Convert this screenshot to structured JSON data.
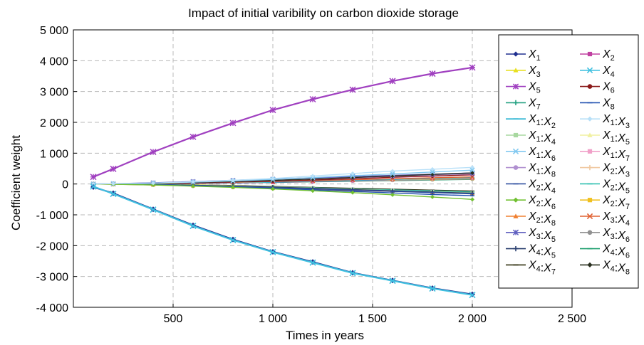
{
  "chart_data": {
    "type": "line",
    "title": "Impact of initial varibility on carbon dioxide storage",
    "xlabel": "Times in years",
    "ylabel": "Coefficient weight",
    "xlim": [
      0,
      2500
    ],
    "ylim": [
      -4000,
      5000
    ],
    "xticks": [
      500,
      1000,
      1500,
      2000,
      2500
    ],
    "xtick_labels": [
      "500",
      "1 000",
      "1 500",
      "2 000",
      "2 500"
    ],
    "yticks": [
      -4000,
      -3000,
      -2000,
      -1000,
      0,
      1000,
      2000,
      3000,
      4000,
      5000
    ],
    "ytick_labels": [
      "-4 000",
      "-3 000",
      "-2 000",
      "-1 000",
      "0",
      "1 000",
      "2 000",
      "3 000",
      "4 000",
      "5 000"
    ],
    "grid": true,
    "legend_position": "right",
    "x": [
      100,
      200,
      400,
      600,
      800,
      1000,
      1200,
      1400,
      1600,
      1800,
      2000
    ],
    "series": [
      {
        "name": "X1",
        "sub": [
          "1"
        ],
        "color": "#1f2f8f",
        "marker": "diamond",
        "values": [
          -100,
          -300,
          -820,
          -1340,
          -1800,
          -2200,
          -2530,
          -2880,
          -3130,
          -3380,
          -3580
        ]
      },
      {
        "name": "X2",
        "sub": [
          "2"
        ],
        "color": "#c040a0",
        "marker": "square",
        "values": [
          0,
          0,
          5,
          15,
          30,
          55,
          80,
          110,
          150,
          180,
          200
        ]
      },
      {
        "name": "X3",
        "sub": [
          "3"
        ],
        "color": "#e8e020",
        "marker": "triangle",
        "values": [
          0,
          0,
          -10,
          -30,
          -60,
          -100,
          -140,
          -180,
          -220,
          -260,
          -300
        ]
      },
      {
        "name": "X4",
        "sub": [
          "4"
        ],
        "color": "#40c0e0",
        "marker": "x",
        "values": [
          -80,
          -320,
          -830,
          -1360,
          -1820,
          -2210,
          -2550,
          -2890,
          -3140,
          -3390,
          -3600
        ]
      },
      {
        "name": "X5",
        "sub": [
          "5"
        ],
        "color": "#a040c0",
        "marker": "star",
        "values": [
          230,
          490,
          1040,
          1530,
          1980,
          2400,
          2750,
          3060,
          3340,
          3580,
          3780
        ]
      },
      {
        "name": "X6",
        "sub": [
          "6"
        ],
        "color": "#8b1a1a",
        "marker": "circle",
        "values": [
          0,
          0,
          10,
          30,
          60,
          90,
          130,
          170,
          220,
          260,
          300
        ]
      },
      {
        "name": "X7",
        "sub": [
          "7"
        ],
        "color": "#20a080",
        "marker": "plus",
        "values": [
          0,
          0,
          -10,
          -40,
          -80,
          -120,
          -160,
          -200,
          -230,
          -270,
          -300
        ]
      },
      {
        "name": "X8",
        "sub": [
          "8"
        ],
        "color": "#2050b0",
        "marker": "dash",
        "values": [
          0,
          0,
          -20,
          -50,
          -90,
          -140,
          -190,
          -240,
          -290,
          -340,
          -380
        ]
      },
      {
        "name": "X1:X2",
        "sub": [
          "1",
          "2"
        ],
        "color": "#20b0d0",
        "marker": "dash",
        "values": [
          0,
          0,
          10,
          20,
          40,
          60,
          90,
          120,
          150,
          180,
          210
        ]
      },
      {
        "name": "X1:X3",
        "sub": [
          "1",
          "3"
        ],
        "color": "#b8e0f8",
        "marker": "diamond",
        "values": [
          0,
          10,
          30,
          70,
          120,
          180,
          260,
          340,
          420,
          480,
          540
        ]
      },
      {
        "name": "X1:X4",
        "sub": [
          "1",
          "4"
        ],
        "color": "#a8d8a0",
        "marker": "square",
        "values": [
          0,
          0,
          -10,
          -30,
          -60,
          -90,
          -130,
          -170,
          -210,
          -250,
          -290
        ]
      },
      {
        "name": "X1:X5",
        "sub": [
          "1",
          "5"
        ],
        "color": "#f0f0a0",
        "marker": "triangle",
        "values": [
          0,
          0,
          10,
          30,
          50,
          80,
          110,
          140,
          170,
          200,
          230
        ]
      },
      {
        "name": "X1:X6",
        "sub": [
          "1",
          "6"
        ],
        "color": "#80c8f0",
        "marker": "x",
        "values": [
          0,
          10,
          30,
          60,
          100,
          150,
          210,
          270,
          330,
          390,
          450
        ]
      },
      {
        "name": "X1:X7",
        "sub": [
          "1",
          "7"
        ],
        "color": "#f0a0c8",
        "marker": "square",
        "values": [
          0,
          0,
          10,
          30,
          60,
          90,
          130,
          170,
          210,
          250,
          290
        ]
      },
      {
        "name": "X1:X8",
        "sub": [
          "1",
          "8"
        ],
        "color": "#b090d0",
        "marker": "circle",
        "values": [
          0,
          10,
          20,
          50,
          80,
          120,
          160,
          200,
          250,
          290,
          330
        ]
      },
      {
        "name": "X2:X3",
        "sub": [
          "2",
          "3"
        ],
        "color": "#f0c8a0",
        "marker": "plus",
        "values": [
          0,
          0,
          10,
          20,
          40,
          60,
          90,
          110,
          140,
          170,
          190
        ]
      },
      {
        "name": "X2:X4",
        "sub": [
          "2",
          "4"
        ],
        "color": "#3050a0",
        "marker": "dash",
        "values": [
          0,
          0,
          -20,
          -50,
          -80,
          -120,
          -160,
          -200,
          -240,
          -280,
          -320
        ]
      },
      {
        "name": "X2:X5",
        "sub": [
          "2",
          "5"
        ],
        "color": "#30c0b0",
        "marker": "dash",
        "values": [
          0,
          0,
          -10,
          -30,
          -60,
          -90,
          -120,
          -160,
          -190,
          -220,
          -260
        ]
      },
      {
        "name": "X2:X6",
        "sub": [
          "2",
          "6"
        ],
        "color": "#70c030",
        "marker": "diamond",
        "values": [
          0,
          -10,
          -30,
          -70,
          -110,
          -160,
          -220,
          -280,
          -350,
          -420,
          -500
        ]
      },
      {
        "name": "X2:X7",
        "sub": [
          "2",
          "7"
        ],
        "color": "#f0c020",
        "marker": "square",
        "values": [
          0,
          0,
          10,
          30,
          50,
          70,
          100,
          120,
          140,
          160,
          180
        ]
      },
      {
        "name": "X2:X8",
        "sub": [
          "2",
          "8"
        ],
        "color": "#f08030",
        "marker": "triangle",
        "values": [
          0,
          -10,
          -30,
          -60,
          -100,
          -140,
          -180,
          -210,
          -240,
          -270,
          -300
        ]
      },
      {
        "name": "X3:X4",
        "sub": [
          "3",
          "4"
        ],
        "color": "#e06030",
        "marker": "x",
        "values": [
          0,
          0,
          10,
          30,
          60,
          80,
          110,
          140,
          170,
          200,
          230
        ]
      },
      {
        "name": "X3:X5",
        "sub": [
          "3",
          "5"
        ],
        "color": "#6060c0",
        "marker": "star",
        "values": [
          0,
          10,
          40,
          80,
          120,
          160,
          200,
          240,
          280,
          320,
          360
        ]
      },
      {
        "name": "X3:X6",
        "sub": [
          "3",
          "6"
        ],
        "color": "#909090",
        "marker": "circle",
        "values": [
          0,
          0,
          10,
          20,
          40,
          60,
          80,
          100,
          120,
          140,
          160
        ]
      },
      {
        "name": "X4:X5",
        "sub": [
          "4",
          "5"
        ],
        "color": "#2a3f6f",
        "marker": "plus",
        "values": [
          0,
          0,
          -20,
          -40,
          -70,
          -100,
          -140,
          -180,
          -220,
          -260,
          -300
        ]
      },
      {
        "name": "X4:X6",
        "sub": [
          "4",
          "6"
        ],
        "color": "#20a070",
        "marker": "dash",
        "values": [
          0,
          0,
          10,
          20,
          40,
          50,
          70,
          90,
          110,
          130,
          150
        ]
      },
      {
        "name": "X4:X7",
        "sub": [
          "4",
          "7"
        ],
        "color": "#303010",
        "marker": "dash",
        "values": [
          0,
          0,
          -10,
          -30,
          -50,
          -80,
          -110,
          -140,
          -170,
          -200,
          -230
        ]
      },
      {
        "name": "X4:X8",
        "sub": [
          "4",
          "8"
        ],
        "color": "#2a3020",
        "marker": "diamond",
        "values": [
          0,
          10,
          20,
          50,
          80,
          120,
          160,
          210,
          260,
          310,
          360
        ]
      }
    ]
  }
}
